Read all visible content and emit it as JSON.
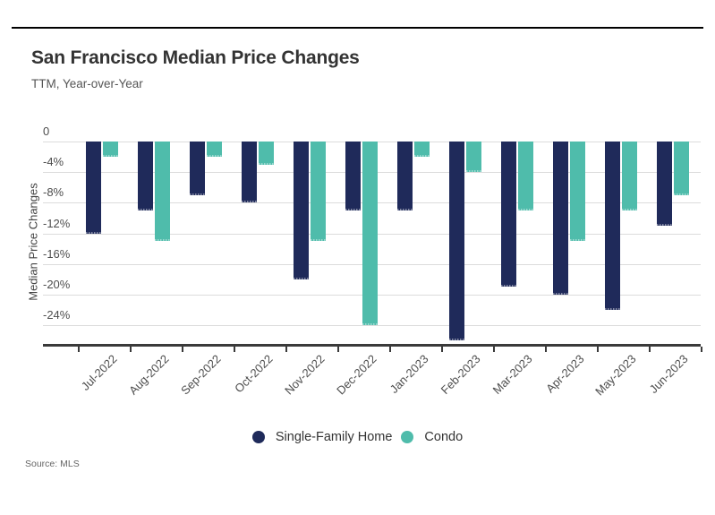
{
  "header": {
    "title": "San Francisco Median Price Changes",
    "subtitle": "TTM, Year-over-Year"
  },
  "source_label": "Source: MLS",
  "chart_data": {
    "type": "bar",
    "title": "San Francisco Median Price Changes",
    "subtitle": "TTM, Year-over-Year",
    "xlabel": "",
    "ylabel": "Median Price Changes",
    "ylim": [
      -27,
      0
    ],
    "grid": true,
    "legend_position": "bottom",
    "unit": "%",
    "categories": [
      "Jul-2022",
      "Aug-2022",
      "Sep-2022",
      "Oct-2022",
      "Nov-2022",
      "Dec-2022",
      "Jan-2023",
      "Feb-2023",
      "Mar-2023",
      "Apr-2023",
      "May-2023",
      "Jun-2023"
    ],
    "series": [
      {
        "name": "Single-Family Home",
        "color": "#1f2a5a",
        "values": [
          -12,
          -9,
          -7,
          -8,
          -18,
          -9,
          -9,
          -26,
          -19,
          -20,
          -22,
          -11
        ]
      },
      {
        "name": "Condo",
        "color": "#4fbcab",
        "values": [
          -2,
          -13,
          -2,
          -3,
          -13,
          -24,
          -2,
          -4,
          -9,
          -13,
          -9,
          -7
        ]
      }
    ],
    "y_ticks": [
      {
        "value": 0,
        "label": "0"
      },
      {
        "value": -4,
        "label": "-4%"
      },
      {
        "value": -8,
        "label": "-8%"
      },
      {
        "value": -12,
        "label": "-12%"
      },
      {
        "value": -16,
        "label": "-16%"
      },
      {
        "value": -20,
        "label": "-20%"
      },
      {
        "value": -24,
        "label": "-24%"
      }
    ]
  }
}
